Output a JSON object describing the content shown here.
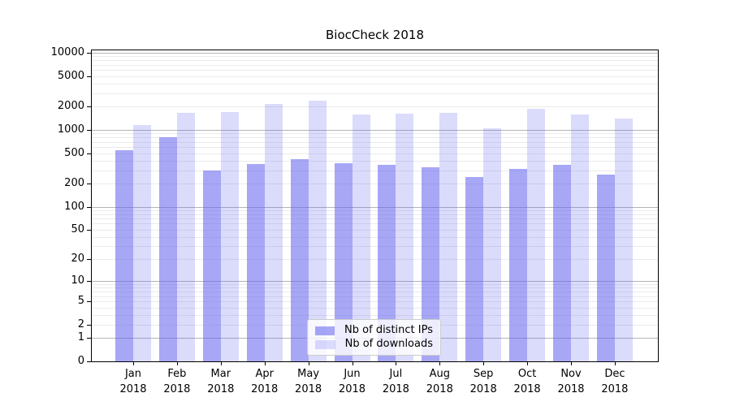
{
  "chart_data": {
    "type": "bar",
    "title": "BiocCheck 2018",
    "categories": [
      "Jan",
      "Feb",
      "Mar",
      "Apr",
      "May",
      "Jun",
      "Jul",
      "Aug",
      "Sep",
      "Oct",
      "Nov",
      "Dec"
    ],
    "year": "2018",
    "series": [
      {
        "name": "Nb of distinct IPs",
        "color": "#a6a6f5",
        "fill": "rgba(101,101,240,0.57)",
        "values": [
          540,
          810,
          300,
          365,
          415,
          370,
          350,
          330,
          245,
          310,
          355,
          265
        ]
      },
      {
        "name": "Nb of downloads",
        "color": "#dcdcf8",
        "fill": "rgba(101,101,240,0.23)",
        "values": [
          1170,
          1680,
          1720,
          2200,
          2420,
          1570,
          1640,
          1680,
          1060,
          1900,
          1570,
          1390
        ]
      }
    ],
    "yticks": [
      0,
      1,
      2,
      5,
      10,
      20,
      50,
      100,
      200,
      500,
      1000,
      2000,
      5000,
      10000
    ],
    "major_grid_values": [
      1,
      10,
      100,
      1000,
      10000
    ],
    "scale": "log10(1+x)",
    "ylim": [
      0,
      10800
    ],
    "grid": true,
    "legend_position": "lower-center"
  },
  "colors": {
    "major_grid": "#b4b4b4",
    "minor_grid": "#ebebeb",
    "spine": "#000000",
    "background": "#ffffff",
    "text": "#000000"
  }
}
